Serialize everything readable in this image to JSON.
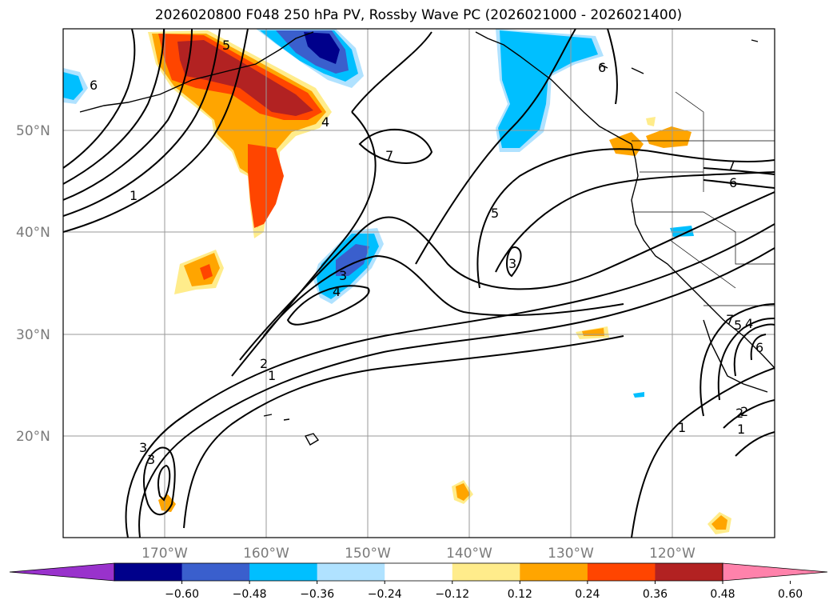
{
  "title": "2026020800 F048 250 hPa PV, Rossby Wave PC (2026021000 - 2026021400)",
  "lat_labels": [
    "50°N",
    "40°N",
    "30°N",
    "20°N"
  ],
  "lon_labels": [
    "170°W",
    "160°W",
    "150°W",
    "140°W",
    "130°W",
    "120°W"
  ],
  "colorbar": {
    "tick_labels": [
      "−0.60",
      "−0.48",
      "−0.36",
      "−0.24",
      "−0.12",
      "0.12",
      "0.24",
      "0.36",
      "0.48",
      "0.60"
    ],
    "colors": [
      "#9932cc",
      "#00008b",
      "#3a5fcd",
      "#00bfff",
      "#b0e2ff",
      "#ffffff",
      "#ffec8b",
      "#ffa500",
      "#ff4500",
      "#b22222",
      "#ff82ab"
    ]
  },
  "contour_labels": [
    "6",
    "5",
    "4",
    "1",
    "7",
    "5",
    "2",
    "3",
    "4",
    "3",
    "2",
    "1",
    "3",
    "3",
    "6",
    "7",
    "6",
    "1",
    "2",
    "1",
    "4",
    "5",
    "6",
    "7"
  ],
  "extent": {
    "lon_range": [
      -180,
      -110
    ],
    "lat_range": [
      10,
      60
    ]
  },
  "map_type": "filled anomaly with line contours"
}
